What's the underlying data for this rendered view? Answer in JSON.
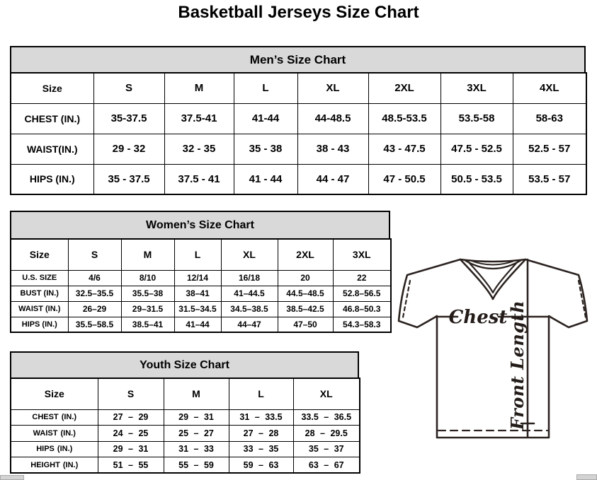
{
  "page_title": "Basketball Jerseys Size Chart",
  "tables": {
    "mens": {
      "title": "Men’s Size Chart",
      "columns": [
        "Size",
        "S",
        "M",
        "L",
        "XL",
        "2XL",
        "3XL",
        "4XL"
      ],
      "rows": [
        {
          "label": "CHEST (IN.)",
          "values": [
            "35-37.5",
            "37.5-41",
            "41-44",
            "44-48.5",
            "48.5-53.5",
            "53.5-58",
            "58-63"
          ]
        },
        {
          "label": "WAIST(IN.)",
          "values": [
            "29 - 32",
            "32 - 35",
            "35 - 38",
            "38 - 43",
            "43 - 47.5",
            "47.5 - 52.5",
            "52.5 - 57"
          ]
        },
        {
          "label": "HIPS (IN.)",
          "values": [
            "35 - 37.5",
            "37.5 - 41",
            "41 - 44",
            "44 - 47",
            "47 - 50.5",
            "50.5 - 53.5",
            "53.5 - 57"
          ]
        }
      ]
    },
    "womens": {
      "title": "Women’s Size Chart",
      "columns": [
        "Size",
        "S",
        "M",
        "L",
        "XL",
        "2XL",
        "3XL"
      ],
      "rows": [
        {
          "label": "U.S. SIZE",
          "values": [
            "4/6",
            "8/10",
            "12/14",
            "16/18",
            "20",
            "22"
          ]
        },
        {
          "label": "BUST (IN.)",
          "values": [
            "32.5–35.5",
            "35.5–38",
            "38–41",
            "41–44.5",
            "44.5–48.5",
            "52.8–56.5"
          ]
        },
        {
          "label": "WAIST (IN.)",
          "values": [
            "26–29",
            "29–31.5",
            "31.5–34.5",
            "34.5–38.5",
            "38.5–42.5",
            "46.8–50.3"
          ]
        },
        {
          "label": "HIPS (IN.)",
          "values": [
            "35.5–58.5",
            "38.5–41",
            "41–44",
            "44–47",
            "47–50",
            "54.3–58.3"
          ]
        }
      ]
    },
    "youth": {
      "title": "Youth Size Chart",
      "columns": [
        "Size",
        "S",
        "M",
        "L",
        "XL"
      ],
      "rows": [
        {
          "label": "CHEST (IN.)",
          "values": [
            "27 – 29",
            "29 – 31",
            "31 – 33.5",
            "33.5 – 36.5"
          ]
        },
        {
          "label": "WAIST (IN.)",
          "values": [
            "24 – 25",
            "25 – 27",
            "27 – 28",
            "28 – 29.5"
          ]
        },
        {
          "label": "HIPS (IN.)",
          "values": [
            "29 – 31",
            "31 – 33",
            "33 – 35",
            "35 – 37"
          ]
        },
        {
          "label": "HEIGHT (IN.)",
          "values": [
            "51 – 55",
            "55 – 59",
            "59 – 63",
            "63 – 67"
          ]
        }
      ]
    }
  },
  "diagram": {
    "chest_label": "Chest",
    "front_length_label": "Front Length"
  },
  "colors": {
    "band_gray": "#d9d9d9",
    "line_black": "#000000",
    "jersey_stroke": "#2b2320"
  }
}
